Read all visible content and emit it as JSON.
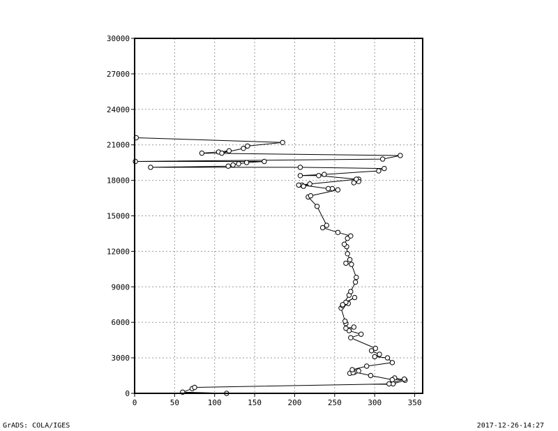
{
  "chart_data": {
    "type": "scatter",
    "mode": "lines+markers",
    "title": "",
    "xlabel": "",
    "ylabel": "",
    "xlim": [
      0,
      360
    ],
    "ylim": [
      0,
      30000
    ],
    "x_ticks": [
      0,
      50,
      100,
      150,
      200,
      250,
      300,
      350
    ],
    "y_ticks": [
      0,
      3000,
      6000,
      9000,
      12000,
      15000,
      18000,
      21000,
      24000,
      27000,
      30000
    ],
    "grid": true,
    "grid_style": "dotted",
    "marker": "open-circle",
    "line_color": "#000000",
    "marker_color": "#000000",
    "series": [
      {
        "x": [
          115,
          60,
          72,
          75,
          323,
          338,
          325,
          318,
          337,
          322,
          295,
          275,
          269,
          273,
          280,
          272,
          290,
          322,
          316,
          300,
          306,
          296,
          301,
          270,
          283,
          268,
          274,
          264,
          264,
          263,
          258,
          267,
          260,
          264,
          275,
          260,
          268,
          270,
          276,
          277,
          271,
          264,
          269,
          266,
          265,
          262,
          266,
          270,
          254,
          235,
          240,
          228,
          217,
          220,
          254,
          247,
          242,
          209,
          219,
          211,
          205,
          280,
          274,
          280,
          277,
          230,
          207,
          237,
          305,
          312,
          207,
          20,
          117,
          123,
          130,
          140,
          162,
          1,
          310,
          332,
          84,
          105,
          118,
          109,
          136,
          141,
          185,
          2
        ],
        "y": [
          0,
          100,
          400,
          500,
          800,
          1100,
          1300,
          800,
          1200,
          1150,
          1500,
          1800,
          1700,
          1750,
          1900,
          2000,
          2300,
          2600,
          3000,
          3100,
          3300,
          3600,
          3800,
          4700,
          5000,
          5300,
          5600,
          5500,
          5900,
          6100,
          7200,
          7600,
          7400,
          7700,
          8100,
          7500,
          8300,
          8600,
          9400,
          9800,
          10900,
          11000,
          11300,
          11800,
          12400,
          12600,
          13100,
          13300,
          13600,
          14000,
          14200,
          15800,
          16600,
          16700,
          17200,
          17300,
          17300,
          17600,
          17700,
          17500,
          17600,
          18100,
          17800,
          17900,
          18100,
          18400,
          18400,
          18500,
          18800,
          19000,
          19100,
          19100,
          19200,
          19300,
          19400,
          19500,
          19600,
          19600,
          19800,
          20100,
          20300,
          20400,
          20500,
          20300,
          20700,
          20900,
          21200,
          21600
        ]
      }
    ]
  },
  "footer": {
    "left": "GrADS: COLA/IGES",
    "right": "2017-12-26-14:27"
  }
}
